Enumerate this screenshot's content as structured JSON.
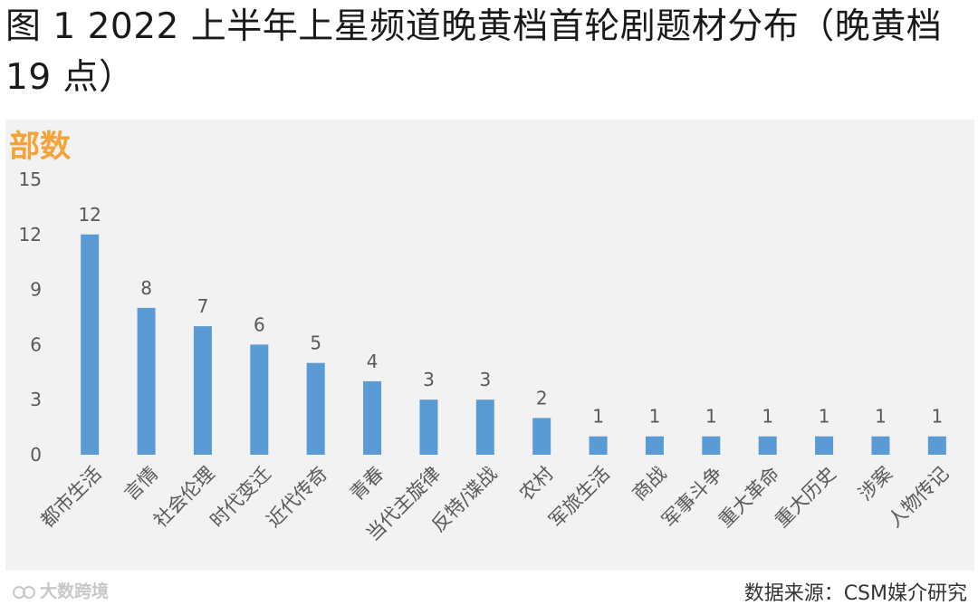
{
  "title": "图 1 2022 上半年上星频道晚黄档首轮剧题材分布（晚黄档 19 点）",
  "source_note": "数据来源：CSM媒介研究",
  "watermark": "大数跨境",
  "colors": {
    "bar": "#5b9bd5",
    "y_unit": "#f5a236",
    "panel_bg": "#f2f2f2",
    "tick_text": "#595959",
    "label_text": "#595959"
  },
  "chart_data": {
    "type": "bar",
    "ylabel": "部数",
    "ylim": [
      0,
      15
    ],
    "yticks": [
      0,
      3,
      6,
      9,
      12,
      15
    ],
    "grid": false,
    "legend": "none",
    "categories": [
      "都市生活",
      "言情",
      "社会伦理",
      "时代变迁",
      "近代传奇",
      "青春",
      "当代主旋律",
      "反特/谍战",
      "农村",
      "军旅生活",
      "商战",
      "军事斗争",
      "重大革命",
      "重大历史",
      "涉案",
      "人物传记"
    ],
    "values": [
      12,
      8,
      7,
      6,
      5,
      4,
      3,
      3,
      2,
      1,
      1,
      1,
      1,
      1,
      1,
      1
    ]
  }
}
